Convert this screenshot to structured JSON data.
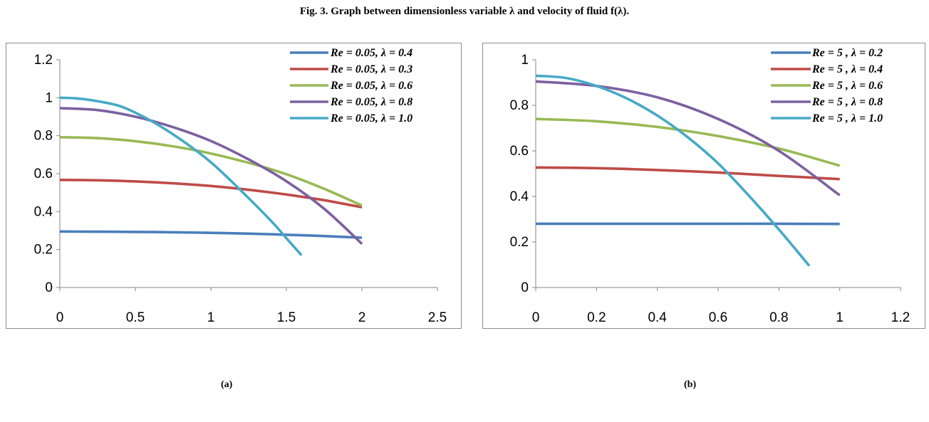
{
  "figure_title": "Fig. 3. Graph between dimensionless variable λ and velocity of fluid  f(λ).",
  "subfigure_labels": [
    "(a)",
    "(b)"
  ],
  "chart_data": [
    {
      "type": "line",
      "panel_label": "(a)",
      "title": "",
      "xlabel": "",
      "ylabel": "",
      "xlim": [
        0,
        2.5
      ],
      "ylim": [
        0,
        1.2
      ],
      "xticks": [
        "0",
        "0.5",
        "1",
        "1.5",
        "2",
        "2.5"
      ],
      "yticks": [
        "0",
        "0.2",
        "0.4",
        "0.6",
        "0.8",
        "1",
        "1.2"
      ],
      "xtick_values": [
        0,
        0.5,
        1,
        1.5,
        2,
        2.5
      ],
      "ytick_values": [
        0,
        0.2,
        0.4,
        0.6,
        0.8,
        1,
        1.2
      ],
      "grid": false,
      "legend_position": "top-right",
      "series": [
        {
          "name": "Re = 0.05, λ = 0.4",
          "color": "#4a7ebb",
          "x": [
            0,
            0.25,
            0.5,
            0.75,
            1,
            1.25,
            1.5,
            1.75,
            2
          ],
          "y": [
            0.295,
            0.294,
            0.293,
            0.291,
            0.288,
            0.284,
            0.278,
            0.271,
            0.262
          ]
        },
        {
          "name": "Re = 0.05, λ = 0.3",
          "color": "#be4b48",
          "x": [
            0,
            0.25,
            0.5,
            0.75,
            1,
            1.25,
            1.5,
            1.75,
            2
          ],
          "y": [
            0.567,
            0.565,
            0.559,
            0.549,
            0.535,
            0.515,
            0.49,
            0.46,
            0.423
          ]
        },
        {
          "name": "Re = 0.05, λ = 0.6",
          "color": "#98b954",
          "x": [
            0,
            0.25,
            0.5,
            0.75,
            1,
            1.25,
            1.5,
            1.75,
            2
          ],
          "y": [
            0.792,
            0.787,
            0.771,
            0.744,
            0.706,
            0.657,
            0.597,
            0.52,
            0.432
          ]
        },
        {
          "name": "Re = 0.05, λ = 0.8",
          "color": "#7d60a0",
          "x": [
            0,
            0.25,
            0.5,
            0.75,
            1,
            1.25,
            1.5,
            1.75,
            2
          ],
          "y": [
            0.945,
            0.935,
            0.9,
            0.845,
            0.772,
            0.675,
            0.56,
            0.415,
            0.23
          ]
        },
        {
          "name": "Re = 0.05, λ = 1.0",
          "color": "#46aac5",
          "x": [
            0,
            0.1,
            0.2,
            0.4,
            0.6,
            0.8,
            1,
            1.2,
            1.4,
            1.5,
            1.6
          ],
          "y": [
            1.0,
            0.997,
            0.988,
            0.955,
            0.88,
            0.78,
            0.66,
            0.51,
            0.35,
            0.26,
            0.17
          ]
        }
      ]
    },
    {
      "type": "line",
      "panel_label": "(b)",
      "title": "",
      "xlabel": "",
      "ylabel": "",
      "xlim": [
        0,
        1.2
      ],
      "ylim": [
        0,
        1
      ],
      "xticks": [
        "0",
        "0.2",
        "0.4",
        "0.6",
        "0.8",
        "1",
        "1.2"
      ],
      "yticks": [
        "0",
        "0.2",
        "0.4",
        "0.6",
        "0.8",
        "1"
      ],
      "xtick_values": [
        0,
        0.2,
        0.4,
        0.6,
        0.8,
        1,
        1.2
      ],
      "ytick_values": [
        0,
        0.2,
        0.4,
        0.6,
        0.8,
        1
      ],
      "grid": false,
      "legend_position": "top-right",
      "series": [
        {
          "name": "Re = 5 ,  λ = 0.2",
          "color": "#4a7ebb",
          "x": [
            0,
            0.2,
            0.4,
            0.6,
            0.8,
            1
          ],
          "y": [
            0.28,
            0.28,
            0.28,
            0.28,
            0.28,
            0.279
          ]
        },
        {
          "name": "Re = 5 ,  λ = 0.4",
          "color": "#be4b48",
          "x": [
            0,
            0.2,
            0.4,
            0.6,
            0.8,
            1
          ],
          "y": [
            0.527,
            0.524,
            0.516,
            0.505,
            0.49,
            0.476
          ]
        },
        {
          "name": "Re = 5 ,  λ = 0.6",
          "color": "#98b954",
          "x": [
            0,
            0.2,
            0.4,
            0.6,
            0.8,
            1
          ],
          "y": [
            0.74,
            0.73,
            0.705,
            0.665,
            0.61,
            0.535
          ]
        },
        {
          "name": "Re = 5 ,  λ = 0.8",
          "color": "#7d60a0",
          "x": [
            0,
            0.2,
            0.4,
            0.6,
            0.8,
            1
          ],
          "y": [
            0.905,
            0.885,
            0.835,
            0.74,
            0.6,
            0.405
          ]
        },
        {
          "name": "Re = 5 ,  λ = 1.0",
          "color": "#46aac5",
          "x": [
            0,
            0.1,
            0.2,
            0.3,
            0.4,
            0.5,
            0.6,
            0.7,
            0.8,
            0.9
          ],
          "y": [
            0.93,
            0.92,
            0.885,
            0.83,
            0.755,
            0.66,
            0.545,
            0.405,
            0.255,
            0.095
          ]
        }
      ]
    }
  ]
}
